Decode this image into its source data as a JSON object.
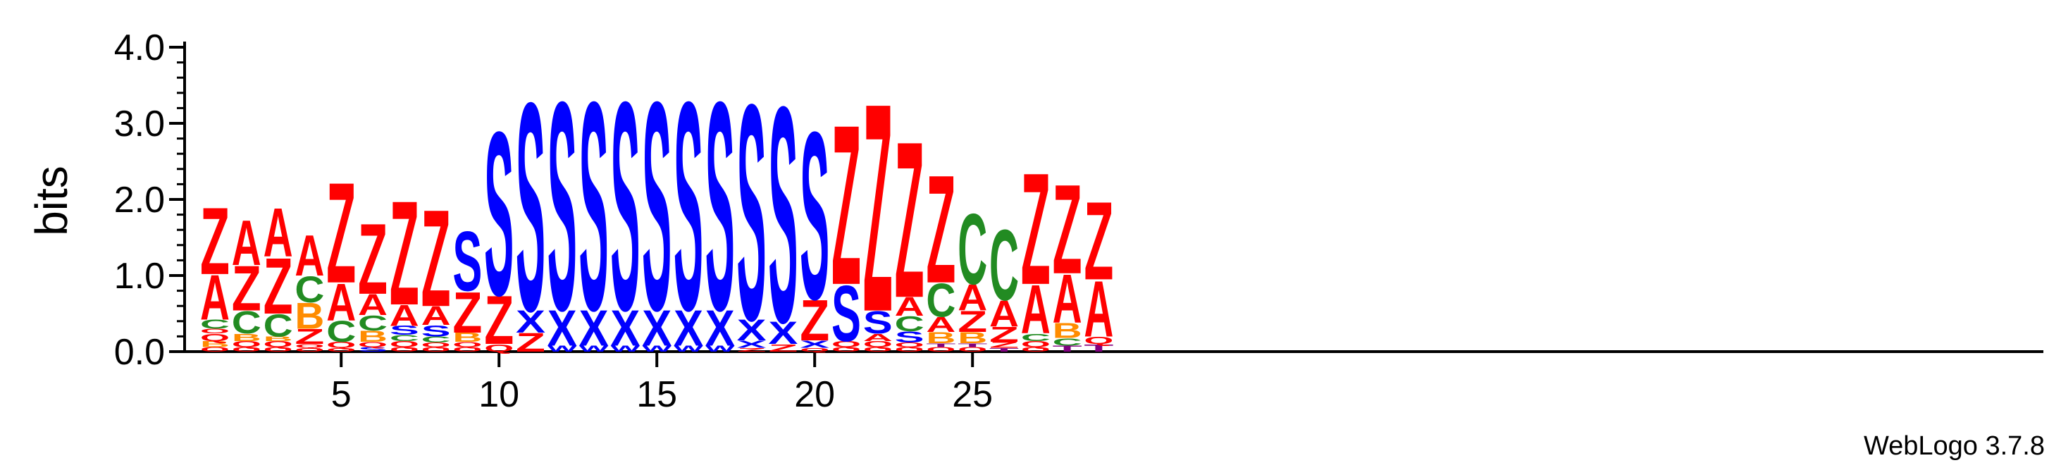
{
  "chart_data": {
    "type": "sequence-logo",
    "ylabel": "bits",
    "xlabel": "",
    "ylim": [
      0,
      4
    ],
    "yticks": [
      "0.0",
      "1.0",
      "2.0",
      "3.0",
      "4.0"
    ],
    "xticks": [
      5,
      10,
      15,
      20,
      25
    ],
    "positions": [
      1,
      2,
      3,
      4,
      5,
      6,
      7,
      8,
      9,
      10,
      11,
      12,
      13,
      14,
      15,
      16,
      17,
      18,
      19,
      20,
      21,
      22,
      23,
      24,
      25,
      26,
      27,
      28,
      29
    ],
    "colors": {
      "Z": "#ff0000",
      "A": "#ff0000",
      "S": "#0000ff",
      "X": "#0000ff",
      "C": "#228b22",
      "B": "#ff8c00",
      "Q": "#ff0000",
      "T": "#800080",
      "O": "#ff0000"
    },
    "stacks": [
      [
        {
          "l": "O",
          "h": 0.06
        },
        {
          "l": "B",
          "h": 0.08
        },
        {
          "l": "Q",
          "h": 0.1
        },
        {
          "l": "O",
          "h": 0.06
        },
        {
          "l": "C",
          "h": 0.12
        },
        {
          "l": "A",
          "h": 0.6
        },
        {
          "l": "Z",
          "h": 0.9
        }
      ],
      [
        {
          "l": "O",
          "h": 0.06
        },
        {
          "l": "Q",
          "h": 0.08
        },
        {
          "l": "B",
          "h": 0.1
        },
        {
          "l": "C",
          "h": 0.3
        },
        {
          "l": "Z",
          "h": 0.6
        },
        {
          "l": "A",
          "h": 0.6
        }
      ],
      [
        {
          "l": "O",
          "h": 0.06
        },
        {
          "l": "Q",
          "h": 0.08
        },
        {
          "l": "B",
          "h": 0.06
        },
        {
          "l": "C",
          "h": 0.3
        },
        {
          "l": "Z",
          "h": 0.75
        },
        {
          "l": "A",
          "h": 0.65
        }
      ],
      [
        {
          "l": "O",
          "h": 0.05
        },
        {
          "l": "Q",
          "h": 0.05
        },
        {
          "l": "Z",
          "h": 0.2
        },
        {
          "l": "B",
          "h": 0.35
        },
        {
          "l": "C",
          "h": 0.35
        },
        {
          "l": "A",
          "h": 0.55
        }
      ],
      [
        {
          "l": "O",
          "h": 0.05
        },
        {
          "l": "Q",
          "h": 0.08
        },
        {
          "l": "C",
          "h": 0.28
        },
        {
          "l": "A",
          "h": 0.5
        },
        {
          "l": "Z",
          "h": 1.35
        }
      ],
      [
        {
          "l": "S",
          "h": 0.06
        },
        {
          "l": "Q",
          "h": 0.07
        },
        {
          "l": "B",
          "h": 0.15
        },
        {
          "l": "C",
          "h": 0.2
        },
        {
          "l": "A",
          "h": 0.28
        },
        {
          "l": "Z",
          "h": 0.95
        }
      ],
      [
        {
          "l": "O",
          "h": 0.06
        },
        {
          "l": "Q",
          "h": 0.08
        },
        {
          "l": "C",
          "h": 0.08
        },
        {
          "l": "S",
          "h": 0.12
        },
        {
          "l": "A",
          "h": 0.28
        },
        {
          "l": "Z",
          "h": 1.4
        }
      ],
      [
        {
          "l": "O",
          "h": 0.06
        },
        {
          "l": "Q",
          "h": 0.06
        },
        {
          "l": "C",
          "h": 0.08
        },
        {
          "l": "S",
          "h": 0.15
        },
        {
          "l": "A",
          "h": 0.25
        },
        {
          "l": "Z",
          "h": 1.3
        }
      ],
      [
        {
          "l": "O",
          "h": 0.06
        },
        {
          "l": "Q",
          "h": 0.07
        },
        {
          "l": "B",
          "h": 0.12
        },
        {
          "l": "Z",
          "h": 0.55
        },
        {
          "l": "S",
          "h": 0.8
        }
      ],
      [
        {
          "l": "Q",
          "h": 0.1
        },
        {
          "l": "Z",
          "h": 0.65
        },
        {
          "l": "S",
          "h": 2.2
        }
      ],
      [
        {
          "l": "Z",
          "h": 0.25
        },
        {
          "l": "X",
          "h": 0.3
        },
        {
          "l": "S",
          "h": 2.8
        }
      ],
      [
        {
          "l": "W",
          "h": 0.08
        },
        {
          "l": "X",
          "h": 0.48
        },
        {
          "l": "S",
          "h": 2.8
        }
      ],
      [
        {
          "l": "W",
          "h": 0.08
        },
        {
          "l": "X",
          "h": 0.48
        },
        {
          "l": "S",
          "h": 2.8
        }
      ],
      [
        {
          "l": "W",
          "h": 0.08
        },
        {
          "l": "X",
          "h": 0.48
        },
        {
          "l": "S",
          "h": 2.8
        }
      ],
      [
        {
          "l": "W",
          "h": 0.08
        },
        {
          "l": "X",
          "h": 0.48
        },
        {
          "l": "S",
          "h": 2.8
        }
      ],
      [
        {
          "l": "W",
          "h": 0.08
        },
        {
          "l": "X",
          "h": 0.48
        },
        {
          "l": "S",
          "h": 2.8
        }
      ],
      [
        {
          "l": "W",
          "h": 0.08
        },
        {
          "l": "X",
          "h": 0.48
        },
        {
          "l": "S",
          "h": 2.8
        }
      ],
      [
        {
          "l": "Z",
          "h": 0.05
        },
        {
          "l": "X",
          "h": 0.1
        },
        {
          "l": "X",
          "h": 0.28
        },
        {
          "l": "S",
          "h": 2.9
        }
      ],
      [
        {
          "l": "Z",
          "h": 0.1
        },
        {
          "l": "X",
          "h": 0.3
        },
        {
          "l": "S",
          "h": 2.9
        }
      ],
      [
        {
          "l": "Q",
          "h": 0.05
        },
        {
          "l": "X",
          "h": 0.1
        },
        {
          "l": "Z",
          "h": 0.55
        },
        {
          "l": "S",
          "h": 2.25
        }
      ],
      [
        {
          "l": "O",
          "h": 0.06
        },
        {
          "l": "Q",
          "h": 0.08
        },
        {
          "l": "S",
          "h": 0.75
        },
        {
          "l": "Z",
          "h": 2.15
        }
      ],
      [
        {
          "l": "O",
          "h": 0.06
        },
        {
          "l": "Q",
          "h": 0.08
        },
        {
          "l": "A",
          "h": 0.1
        },
        {
          "l": "S",
          "h": 0.3
        },
        {
          "l": "Z",
          "h": 2.8
        }
      ],
      [
        {
          "l": "O",
          "h": 0.06
        },
        {
          "l": "Q",
          "h": 0.06
        },
        {
          "l": "S",
          "h": 0.15
        },
        {
          "l": "C",
          "h": 0.2
        },
        {
          "l": "A",
          "h": 0.25
        },
        {
          "l": "Z",
          "h": 2.1
        }
      ],
      [
        {
          "l": "O",
          "h": 0.06
        },
        {
          "l": "T",
          "h": 0.05
        },
        {
          "l": "B",
          "h": 0.15
        },
        {
          "l": "A",
          "h": 0.2
        },
        {
          "l": "C",
          "h": 0.45
        },
        {
          "l": "Z",
          "h": 1.45
        }
      ],
      [
        {
          "l": "O",
          "h": 0.06
        },
        {
          "l": "T",
          "h": 0.05
        },
        {
          "l": "B",
          "h": 0.15
        },
        {
          "l": "Z",
          "h": 0.28
        },
        {
          "l": "A",
          "h": 0.35
        },
        {
          "l": "C",
          "h": 0.95
        }
      ],
      [
        {
          "l": "T",
          "h": 0.05
        },
        {
          "l": "Z",
          "h": 0.08
        },
        {
          "l": "Z",
          "h": 0.2
        },
        {
          "l": "A",
          "h": 0.35
        },
        {
          "l": "C",
          "h": 0.95
        }
      ],
      [
        {
          "l": "O",
          "h": 0.06
        },
        {
          "l": "Q",
          "h": 0.08
        },
        {
          "l": "C",
          "h": 0.1
        },
        {
          "l": "A",
          "h": 0.65
        },
        {
          "l": "Z",
          "h": 1.5
        }
      ],
      [
        {
          "l": "T",
          "h": 0.08
        },
        {
          "l": "C",
          "h": 0.1
        },
        {
          "l": "B",
          "h": 0.2
        },
        {
          "l": "A",
          "h": 0.65
        },
        {
          "l": "Z",
          "h": 1.2
        }
      ],
      [
        {
          "l": "T",
          "h": 0.1
        },
        {
          "l": "Q",
          "h": 0.1
        },
        {
          "l": "A",
          "h": 0.75
        },
        {
          "l": "Z",
          "h": 1.05
        }
      ]
    ]
  },
  "footer": {
    "credit": "WebLogo 3.7.8"
  }
}
